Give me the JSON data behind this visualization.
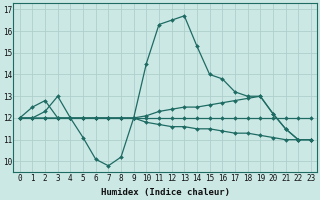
{
  "xlabel": "Humidex (Indice chaleur)",
  "bg_color": "#cce8e5",
  "line_color": "#1e6b63",
  "grid_color": "#aecfcc",
  "x": [
    0,
    1,
    2,
    3,
    4,
    5,
    6,
    7,
    8,
    9,
    10,
    11,
    12,
    13,
    14,
    15,
    16,
    17,
    18,
    19,
    20,
    21,
    22,
    23
  ],
  "series": {
    "line1": [
      12.0,
      12.5,
      12.8,
      12.0,
      12.0,
      11.1,
      10.1,
      9.8,
      10.2,
      12.0,
      14.5,
      16.3,
      16.5,
      16.7,
      15.3,
      14.0,
      13.8,
      13.2,
      13.0,
      13.0,
      12.2,
      11.5,
      11.0,
      11.0
    ],
    "line2": [
      12.0,
      12.0,
      12.3,
      13.0,
      12.0,
      12.0,
      12.0,
      12.0,
      12.0,
      12.0,
      12.1,
      12.3,
      12.4,
      12.5,
      12.5,
      12.6,
      12.7,
      12.8,
      12.9,
      13.0,
      12.2,
      11.5,
      11.0,
      11.0
    ],
    "line3": [
      12.0,
      12.0,
      12.0,
      12.0,
      12.0,
      12.0,
      12.0,
      12.0,
      12.0,
      12.0,
      11.8,
      11.7,
      11.6,
      11.6,
      11.5,
      11.5,
      11.4,
      11.3,
      11.3,
      11.2,
      11.1,
      11.0,
      11.0,
      11.0
    ],
    "line4": [
      12.0,
      12.0,
      12.0,
      12.0,
      12.0,
      12.0,
      12.0,
      12.0,
      12.0,
      12.0,
      12.0,
      12.0,
      12.0,
      12.0,
      12.0,
      12.0,
      12.0,
      12.0,
      12.0,
      12.0,
      12.0,
      12.0,
      12.0,
      12.0
    ]
  },
  "ylim": [
    9.5,
    17.3
  ],
  "yticks": [
    10,
    11,
    12,
    13,
    14,
    15,
    16,
    17
  ],
  "xticks": [
    0,
    1,
    2,
    3,
    4,
    5,
    6,
    7,
    8,
    9,
    10,
    11,
    12,
    13,
    14,
    15,
    16,
    17,
    18,
    19,
    20,
    21,
    22,
    23
  ],
  "markersize": 2.0,
  "linewidth": 0.9,
  "xlabel_fontsize": 6.5,
  "tick_fontsize": 5.5
}
